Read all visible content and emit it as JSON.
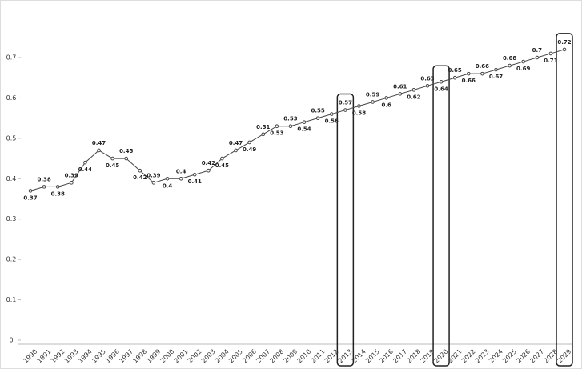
{
  "chart_data": {
    "type": "line",
    "categories": [
      "1990",
      "1991",
      "1992",
      "1993",
      "1994",
      "1995",
      "1996",
      "1997",
      "1998",
      "1999",
      "2000",
      "2001",
      "2002",
      "2003",
      "2004",
      "2005",
      "2006",
      "2007",
      "2008",
      "2009",
      "2010",
      "2011",
      "2012",
      "2013",
      "2014",
      "2015",
      "2016",
      "2017",
      "2018",
      "2019",
      "2020",
      "2021",
      "2022",
      "2023",
      "2024",
      "2025",
      "2026",
      "2027",
      "2028",
      "2029"
    ],
    "values": [
      0.37,
      0.38,
      0.38,
      0.39,
      0.44,
      0.47,
      0.45,
      0.45,
      0.42,
      0.39,
      0.4,
      0.4,
      0.41,
      0.42,
      0.45,
      0.47,
      0.49,
      0.51,
      0.53,
      0.53,
      0.54,
      0.55,
      0.56,
      0.57,
      0.58,
      0.59,
      0.6,
      0.61,
      0.62,
      0.63,
      0.64,
      0.65,
      0.66,
      0.66,
      0.67,
      0.68,
      0.69,
      0.7,
      0.71,
      0.72
    ],
    "color": "#444444",
    "highlight": [
      23,
      30,
      39
    ],
    "ylim": [
      0,
      0.7
    ],
    "yticks": [
      0,
      0.1,
      0.2,
      0.3,
      0.4,
      0.5,
      0.6,
      0.7
    ],
    "grid": false
  }
}
